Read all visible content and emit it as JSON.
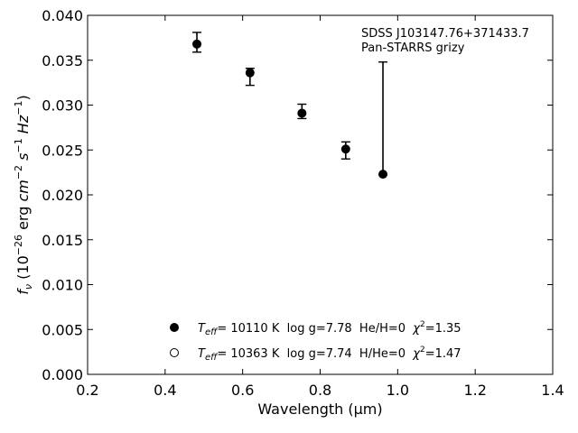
{
  "chart_data": {
    "type": "scatter",
    "annotation_lines": [
      "SDSS J103147.76+371433.7",
      "Pan-STARRS grizy"
    ],
    "xlabel": "Wavelength (μm)",
    "ylabel": "f_ν (10^-26 erg cm^-2 s^-1 Hz^-1)",
    "xlim": [
      0.2,
      1.4
    ],
    "ylim": [
      0.0,
      0.04
    ],
    "x_ticks": [
      0.2,
      0.4,
      0.6,
      0.8,
      1.0,
      1.2,
      1.4
    ],
    "x_tick_labels": [
      "0.2",
      "0.4",
      "0.6",
      "0.8",
      "1.0",
      "1.2",
      "1.4"
    ],
    "y_ticks": [
      0.0,
      0.005,
      0.01,
      0.015,
      0.02,
      0.025,
      0.03,
      0.035,
      0.04
    ],
    "y_tick_labels": [
      "0.000",
      "0.005",
      "0.010",
      "0.015",
      "0.020",
      "0.025",
      "0.030",
      "0.035",
      "0.040"
    ],
    "grid": false,
    "legend_position": "bottom-center",
    "series": [
      {
        "marker": "filled-circle",
        "x": [
          0.482,
          0.619,
          0.753,
          0.866,
          0.962
        ],
        "y": [
          0.0368,
          0.0336,
          0.0291,
          0.0251,
          0.0223
        ],
        "y_err_low": [
          0.0009,
          0.0014,
          0.0006,
          0.0011,
          0.0
        ],
        "y_err_high": [
          0.0013,
          0.0005,
          0.001,
          0.0008,
          0.0125
        ]
      }
    ],
    "legend": [
      {
        "marker": "filled-circle",
        "teff_label": "T",
        "teff_sub": "eff",
        "text": "= 10110 K  log g=7.78  He/H=0  ",
        "chi_label": "χ",
        "chi_sup": "2",
        "chi_value": "=1.35"
      },
      {
        "marker": "open-circle",
        "teff_label": "T",
        "teff_sub": "eff",
        "text": "= 10363 K  log g=7.74  H/He=0  ",
        "chi_label": "χ",
        "chi_sup": "2",
        "chi_value": "=1.47"
      }
    ]
  }
}
